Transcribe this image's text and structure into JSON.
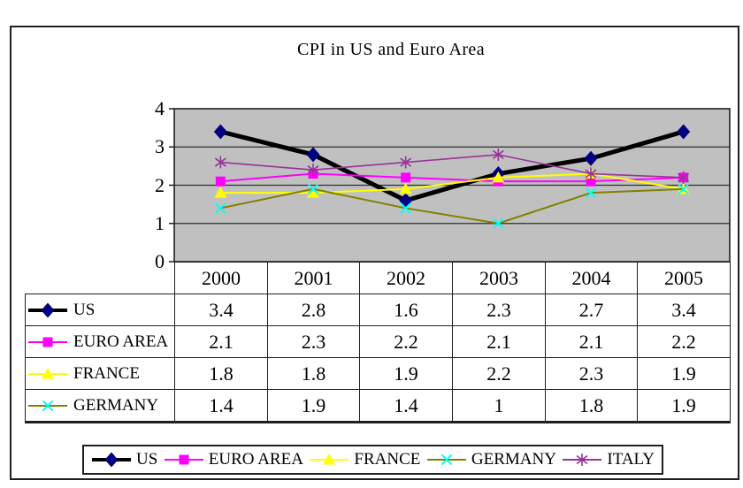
{
  "chart_data": {
    "type": "line",
    "title": "CPI in US and Euro Area",
    "categories": [
      "2000",
      "2001",
      "2002",
      "2003",
      "2004",
      "2005"
    ],
    "series": [
      {
        "name": "US",
        "values": [
          3.4,
          2.8,
          1.6,
          2.3,
          2.7,
          3.4
        ],
        "display": [
          "3.4",
          "2.8",
          "1.6",
          "2.3",
          "2.7",
          "3.4"
        ],
        "line_color": "#000000",
        "marker_color": "#000080",
        "marker": "diamond",
        "line_width": 5,
        "in_table": true
      },
      {
        "name": "EURO AREA",
        "values": [
          2.1,
          2.3,
          2.2,
          2.1,
          2.1,
          2.2
        ],
        "display": [
          "2.1",
          "2.3",
          "2.2",
          "2.1",
          "2.1",
          "2.2"
        ],
        "line_color": "#ff00ff",
        "marker_color": "#ff00ff",
        "marker": "square",
        "line_width": 2,
        "in_table": true
      },
      {
        "name": "FRANCE",
        "values": [
          1.8,
          1.8,
          1.9,
          2.2,
          2.3,
          1.9
        ],
        "display": [
          "1.8",
          "1.8",
          "1.9",
          "2.2",
          "2.3",
          "1.9"
        ],
        "line_color": "#ffff00",
        "marker_color": "#ffff00",
        "marker": "triangle",
        "line_width": 2,
        "in_table": true
      },
      {
        "name": "GERMANY",
        "values": [
          1.4,
          1.9,
          1.4,
          1.0,
          1.8,
          1.9
        ],
        "display": [
          "1.4",
          "1.9",
          "1.4",
          "1",
          "1.8",
          "1.9"
        ],
        "line_color": "#808000",
        "marker_color": "#00ffff",
        "marker": "x",
        "line_width": 2,
        "in_table": true
      },
      {
        "name": "ITALY",
        "values": [
          2.6,
          2.4,
          2.6,
          2.8,
          2.3,
          2.2
        ],
        "line_color": "#993399",
        "marker_color": "#993399",
        "marker": "asterisk",
        "line_width": 1.6,
        "in_table": false
      }
    ],
    "xlabel": "",
    "ylabel": "",
    "ylim": [
      0,
      4
    ],
    "yticks": [
      0,
      1,
      2,
      3,
      4
    ],
    "grid": true,
    "gridline_values": [
      1,
      2,
      3
    ],
    "legend_position": "bottom",
    "plot_bg": "#c0c0c0",
    "axis_color": "#1f1f1f",
    "gridline_color": "#2e2e2e"
  }
}
